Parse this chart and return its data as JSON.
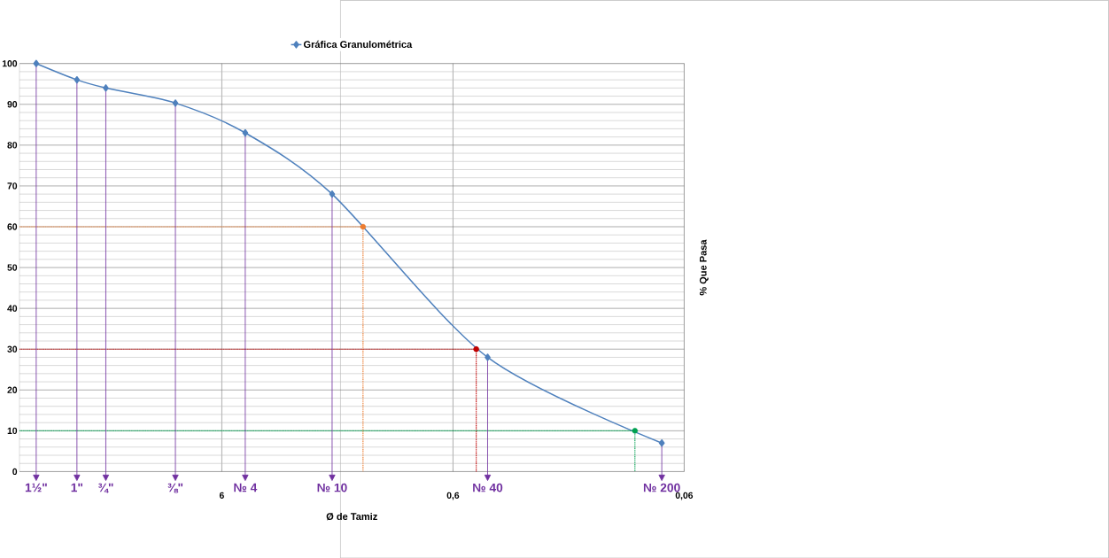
{
  "chart_data": {
    "type": "line",
    "xlabel": "Ø de Tamiz",
    "ylabel": "% Que Pasa",
    "log": "x",
    "grid": true,
    "legend": "top",
    "xlim": [
      45,
      0.06
    ],
    "xticks": [
      {
        "value": 6,
        "label": "6"
      },
      {
        "value": 0.6,
        "label": "0,6"
      },
      {
        "value": 0.06,
        "label": "0,06"
      }
    ],
    "ylim": [
      0,
      100
    ],
    "yticks": [
      0,
      10,
      20,
      30,
      40,
      50,
      60,
      70,
      80,
      90,
      100
    ],
    "series": [
      {
        "name": "Gráfica Granulométrica",
        "color": "#4f81bd",
        "marker": "diamond",
        "x": [
          38.1,
          25.4,
          19.05,
          9.525,
          4.75,
          2.0,
          0.425,
          0.075
        ],
        "values": [
          100,
          96,
          94,
          90.3,
          83,
          68,
          28,
          7
        ]
      },
      {
        "type": "line",
        "color": "#ed7d31",
        "line_style": "dotted",
        "marker": "none",
        "x": [
          45,
          1.47,
          1.47
        ],
        "values": [
          60,
          60,
          0
        ]
      },
      {
        "type": "line",
        "color": "#c00000",
        "line_style": "dotted",
        "marker": "none",
        "x": [
          45,
          0.476,
          0.476
        ],
        "values": [
          30,
          30,
          0
        ]
      },
      {
        "type": "line",
        "color": "#00a050",
        "line_style": "dotted",
        "marker": "none",
        "x": [
          45,
          0.098,
          0.098
        ],
        "values": [
          10,
          10,
          0
        ]
      },
      {
        "type": "scatter",
        "marker": "circle",
        "x": [
          1.47,
          0.476,
          0.098
        ],
        "values": [
          60,
          30,
          10
        ],
        "colors": [
          "#ed7d31",
          "#c00000",
          "#00a050"
        ]
      }
    ],
    "annotations": [
      {
        "text": "1½\"",
        "x": 38.1,
        "y": 100
      },
      {
        "text": "1\"",
        "x": 25.4,
        "y": 96
      },
      {
        "text": "¾\"",
        "x": 19.05,
        "y": 94
      },
      {
        "text": "⅜\"",
        "x": 9.525,
        "y": 90.3
      },
      {
        "text": "№ 4",
        "x": 4.75,
        "y": 83
      },
      {
        "text": "№ 10",
        "x": 2.0,
        "y": 68
      },
      {
        "text": "№ 40",
        "x": 0.425,
        "y": 28
      },
      {
        "text": "№ 200",
        "x": 0.075,
        "y": 7
      }
    ]
  }
}
